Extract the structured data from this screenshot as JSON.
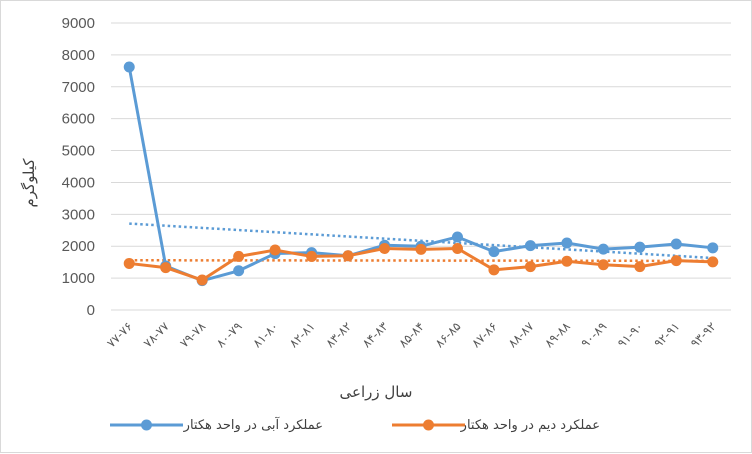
{
  "chart_data": {
    "type": "line",
    "xlabel": "سال زراعی",
    "ylabel": "کیلوگرم",
    "ylim": [
      0,
      9000
    ],
    "yticks": [
      "0",
      "1000",
      "2000",
      "3000",
      "4000",
      "5000",
      "6000",
      "7000",
      "8000",
      "9000"
    ],
    "grid": true,
    "legend_position": "bottom",
    "categories": [
      "۷۷-۷۶",
      "۷۸-۷۷",
      "۷۹-۷۸",
      "۸۰-۷۹",
      "۸۱-۸۰",
      "۸۲-۸۱",
      "۸۳-۸۲",
      "۸۴-۸۳",
      "۸۵-۸۴",
      "۸۶-۸۵",
      "۸۷-۸۶",
      "۸۸-۸۷",
      "۸۹-۸۸",
      "۹۰-۸۹",
      "۹۱-۹۰",
      "۹۲-۹۱",
      "۹۳-۹۲"
    ],
    "series": [
      {
        "name": "عملکرد آبی در واحد هکتار",
        "color": "#5b9bd5",
        "values": [
          7620,
          1380,
          920,
          1230,
          1770,
          1800,
          1700,
          2030,
          2000,
          2290,
          1830,
          2020,
          2100,
          1910,
          1970,
          2070,
          1950
        ],
        "trendline": {
          "type": "linear",
          "style": "dotted",
          "start": 2710,
          "end": 1630
        }
      },
      {
        "name": "عملکرد دیم در واحد هکتار",
        "color": "#ed7d31",
        "values": [
          1460,
          1330,
          940,
          1680,
          1880,
          1680,
          1700,
          1930,
          1900,
          1930,
          1260,
          1360,
          1530,
          1420,
          1360,
          1550,
          1510
        ],
        "trendline": {
          "type": "linear",
          "style": "dotted",
          "start": 1560,
          "end": 1540
        }
      }
    ],
    "gridline_color": "#d9d9d9"
  }
}
